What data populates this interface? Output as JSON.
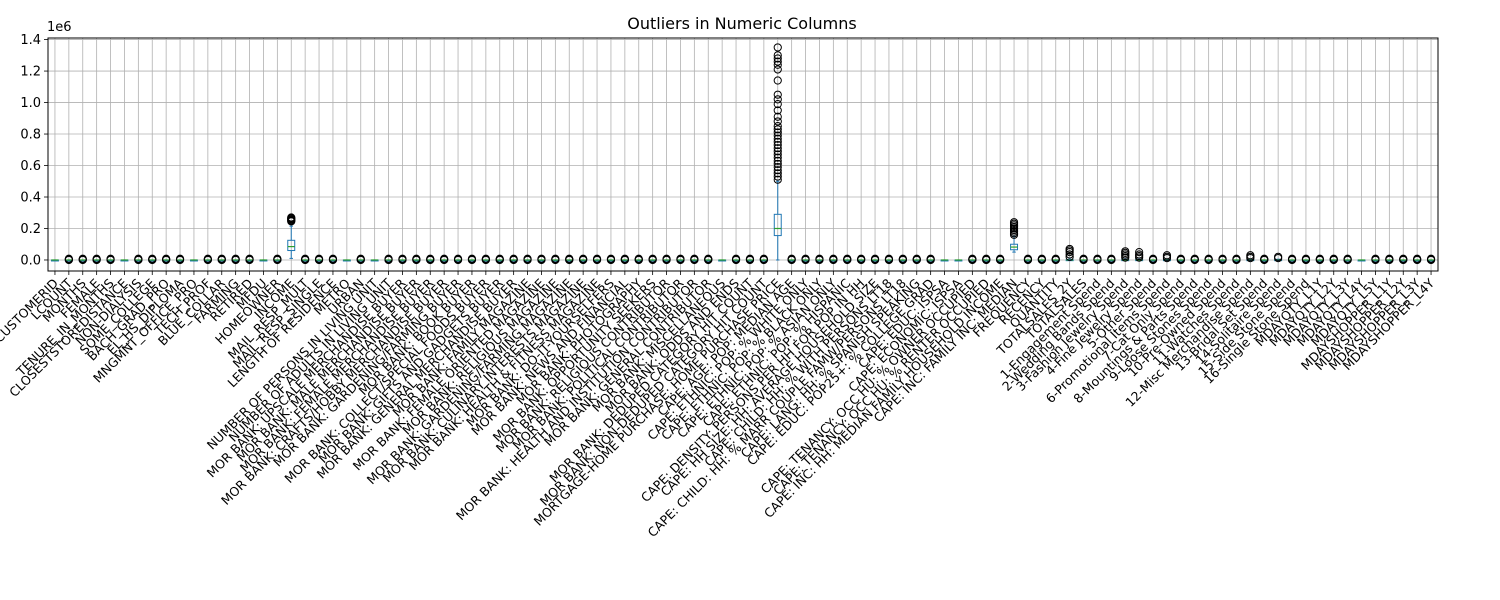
{
  "chart_data": {
    "type": "boxplot",
    "title": "Outliers in Numeric Columns",
    "xlabel": "",
    "ylabel": "",
    "y_offset_label": "1e6",
    "ylim": [
      -0.07,
      1.41
    ],
    "yticks": [
      0.0,
      0.2,
      0.4,
      0.6,
      0.8,
      1.0,
      1.2,
      1.4
    ],
    "ytick_labels": [
      "0.0",
      "0.2",
      "0.4",
      "0.6",
      "0.8",
      "1.0",
      "1.2",
      "1.4"
    ],
    "grid": true,
    "x_tick_rotation": 45,
    "categories": [
      "CUSTOMERID",
      "LCOUNT",
      "MONTHS",
      "FEMALE",
      "TENURE_IN_MONTHS",
      "CLOSESTSTOREDISTANCE",
      "NON-DIALYSIS",
      "SOME_COLLEGE",
      "BACH_GRAD_PRO",
      "EL_HS_DIPLOMA",
      "MNGMNT_OFFICE_PRO",
      "TECH_PROF",
      "BLUE_COLLAR",
      "FARMING",
      "RETIRED",
      "MFDU",
      "HOMEOWNER",
      "INCOME",
      "MAIL_RESP_MULT",
      "MAIL_RESP_SINGLE",
      "LENGTH OF RESIDENCE",
      "METRO",
      "URBAN",
      "NUMBER OF PERSONS IN LIVING UNIT",
      "NUMBER OF ADULTS IN LIVING UNIT",
      "MOR BANK: UPSCALE MERCHANDISE BUYER",
      "MOR BANK: MALE MERCHANDISE BUYER",
      "MOR BANK: FEMALE MERCHANDISE BUYER",
      "MOR BANK: CRAFTS/HOBBY MERCHANDISE BUYER",
      "MOR BANK: GARDENING/FARMING BUYER",
      "MOR BANK: BOOK BUYER",
      "MOR BANK: COLLECT/SPECIAL FOODS BUYER",
      "MOR BANK: GIFTS AND GADGETS BUYER",
      "MOR BANK: GENERAL MERCHANDISE BUYER",
      "MOR BANK: FAMILY MAGAZINE",
      "MOR BANK: FEMALE ORIENTED MAGAZINE",
      "MOR BANK: RELIGIOUS MAGAZINE",
      "MOR BANK: GARDENING/FARMING MAGAZINE",
      "MOR BANK: CULINARY INTERESTS MAGAZINE",
      "MOR BANK: HEALTH & FITNESS MAGAZINE",
      "MOR BANK: DO-IT-YOURSELFERS",
      "MOR BANK: NEWS AND FINANCIAL",
      "MOR BANK: PHOTOGRAPHY",
      "MOR BANK: OPPORTUNITY SEEKERS",
      "MOR BANK: RELIGIOUS CONTRIBUTOR",
      "MOR BANK: POLITICAL CONTRIBUTOR",
      "MOR BANK: HEALTH AND INSTITUTION CONTRIBUTOR",
      "MOR BANK: GENERAL CONTRIBUTOR",
      "MOR BANK: MISCELLANEOUS",
      "MOR BANK: ODDS AND ENDS",
      "MOR BANK: DEDUPED CATEGORY HIT COUNT",
      "MOR BANK: NON-DEDUPED CATEGORY HIT COUNT",
      "MORTGAGE-HOME PURCHASE: HOME PURCHASE PRICE",
      "CAPE: AGE: POP: MEDIAN AGE",
      "CAPE: ETHNIC: POP: % WHITE ONLY",
      "CAPE: ETHNIC: POP: % BLACK ONLY",
      "CAPE: ETHNIC: POP: % ASIAN ONLY",
      "CAPE: ETHNIC: POP: % HISPANIC",
      "CAPE: DENSITY: PERSONS PER HH FOR POP IN HH",
      "CAPE: HH SIZE: HH: AVERAGE HOUSEHOLD SIZE",
      "CAPE: CHILD: HH: % WITH PERSONS LT18",
      "CAPE: CHILD: HH: % MARR COUPLE FAMW/PERSONS LT18",
      "CAPE: LANG: HH: % SPANISH SPEAKING",
      "CAPE: EDUC: POP25+: % COLLEGE GRAD",
      "CAPE: EDUC: ISPSA",
      "CAPE: ECONOMIC: ISPSA",
      "CAPE: TENANCY: OCC HU: % OWNER OCCUPIED",
      "CAPE: TENANCY: OCC HU: % RENTER OCCUPIED",
      "CAPE: INC: HH: MEDIAN FAMILY HOUSEHOLD INCOME",
      "CAPE: INC: FAMILY INC: MEDIAN",
      "FREQUENCY",
      "RECENCY",
      "QUANTITY",
      "TOTALSALES_2Y",
      "TOTALSALES",
      "1-Engagement Spend",
      "2-Wedding Bands Spend",
      "3-Fashion Jewelry Spend",
      "4-Fine Jewelry Spend",
      "5-Other Spend",
      "6-Promotional Items Spend",
      "7-Cat Only Spend",
      "8-Mountings & Parts Spend",
      "9-Loose Stones Spend",
      "10-Pre-Owned Spend",
      "11-Watches Spend",
      "12-Misc Merchandise Spend",
      "13-Bridal Set Spend",
      "14-Solitaire Spend",
      "15-Side Stone Spend",
      "16-Single Stone Spend",
      "MDAYQTY_L1Y",
      "MDAYQTY_L2Y",
      "MDAYQTY_L3Y",
      "MDAYQTY_L4Y",
      "MDAYQTY_L5Y",
      "MDAYSHOPPER_L1Y",
      "MDAYSHOPPER_L2Y",
      "MDAYSHOPPER_L3Y",
      "MDAYSHOPPER_L4Y"
    ],
    "special_boxes": [
      {
        "category_index": 17,
        "whisker_low": 0.01,
        "q1": 0.06,
        "median": 0.085,
        "q3": 0.125,
        "whisker_high": 0.215,
        "outliers": [
          0.245,
          0.25,
          0.255,
          0.26,
          0.265,
          0.27
        ]
      },
      {
        "category_index": 52,
        "whisker_low": 0.0,
        "q1": 0.155,
        "median": 0.2,
        "q3": 0.29,
        "whisker_high": 0.5,
        "outliers": [
          0.51,
          0.53,
          0.55,
          0.57,
          0.59,
          0.61,
          0.63,
          0.65,
          0.67,
          0.69,
          0.71,
          0.73,
          0.75,
          0.77,
          0.79,
          0.81,
          0.83,
          0.85,
          0.88,
          0.91,
          0.95,
          0.99,
          1.02,
          1.05,
          1.14,
          1.21,
          1.24,
          1.26,
          1.28,
          1.3,
          1.35
        ]
      },
      {
        "category_index": 69,
        "whisker_low": 0.05,
        "q1": 0.065,
        "median": 0.082,
        "q3": 0.1,
        "whisker_high": 0.15,
        "outliers": [
          0.16,
          0.17,
          0.18,
          0.19,
          0.2,
          0.21,
          0.22,
          0.23,
          0.24
        ]
      },
      {
        "category_index": 73,
        "whisker_low": 0.0,
        "q1": 0.0,
        "median": 0.0,
        "q3": 0.002,
        "whisker_high": 0.005,
        "outliers": [
          0.02,
          0.035,
          0.05,
          0.06,
          0.07
        ]
      },
      {
        "category_index": 77,
        "whisker_low": 0.0,
        "q1": 0.0,
        "median": 0.0,
        "q3": 0.002,
        "whisker_high": 0.005,
        "outliers": [
          0.015,
          0.025,
          0.035,
          0.045,
          0.055
        ]
      },
      {
        "category_index": 78,
        "whisker_low": 0.0,
        "q1": 0.0,
        "median": 0.0,
        "q3": 0.002,
        "whisker_high": 0.005,
        "outliers": [
          0.015,
          0.025,
          0.035,
          0.05
        ]
      },
      {
        "category_index": 80,
        "whisker_low": 0.0,
        "q1": 0.0,
        "median": 0.0,
        "q3": 0.002,
        "whisker_high": 0.005,
        "outliers": [
          0.012,
          0.02,
          0.03
        ]
      },
      {
        "category_index": 86,
        "whisker_low": 0.0,
        "q1": 0.0,
        "median": 0.0,
        "q3": 0.002,
        "whisker_high": 0.005,
        "outliers": [
          0.012,
          0.02,
          0.03
        ]
      },
      {
        "category_index": 88,
        "whisker_low": 0.0,
        "q1": 0.0,
        "median": 0.0,
        "q3": 0.002,
        "whisker_high": 0.005,
        "outliers": [
          0.012,
          0.02
        ]
      }
    ],
    "default_box": {
      "whisker_low": 0.0,
      "q1": 0.0,
      "median": 0.0,
      "q3": 0.0,
      "whisker_high": 0.0,
      "outliers": [
        0.0,
        0.004,
        0.008
      ]
    },
    "no_outlier_indices": [
      0,
      5,
      10,
      15,
      21,
      23,
      48,
      64,
      65,
      94
    ],
    "colors": {
      "box": "#1f77b4",
      "median": "#2ca02c",
      "outlier": "#000000",
      "grid": "#b0b0b0"
    }
  }
}
